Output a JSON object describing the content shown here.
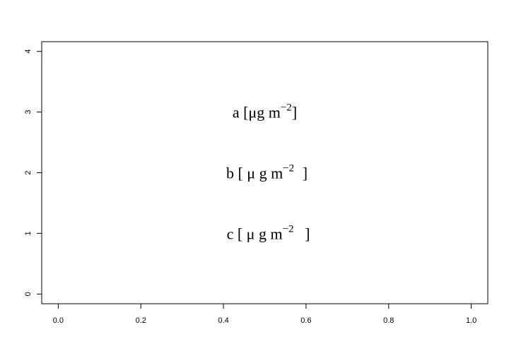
{
  "chart_data": {
    "type": "scatter",
    "title": "",
    "xlabel": "",
    "ylabel": "",
    "xlim": [
      -0.04,
      1.04
    ],
    "ylim": [
      -0.16,
      4.16
    ],
    "x_ticks": [
      0.0,
      0.2,
      0.4,
      0.6,
      0.8,
      1.0
    ],
    "x_tick_labels": [
      "0.0",
      "0.2",
      "0.4",
      "0.6",
      "0.8",
      "1.0"
    ],
    "y_ticks": [
      0,
      1,
      2,
      3,
      4
    ],
    "y_tick_labels": [
      "0",
      "1",
      "2",
      "3",
      "4"
    ],
    "grid": false,
    "series": [],
    "annotations": [
      {
        "x": 0.5,
        "y": 3,
        "parts": [
          "a [μg m",
          "−2",
          "]"
        ],
        "gaps": [
          0,
          0
        ]
      },
      {
        "x": 0.5,
        "y": 2,
        "parts": [
          "b [ μ g m",
          "−2",
          " ]"
        ],
        "gaps": [
          0,
          6
        ]
      },
      {
        "x": 0.5,
        "y": 1,
        "parts": [
          "c [   μ   g m",
          "−2",
          "   ]"
        ],
        "gaps": [
          0,
          10
        ]
      }
    ]
  }
}
